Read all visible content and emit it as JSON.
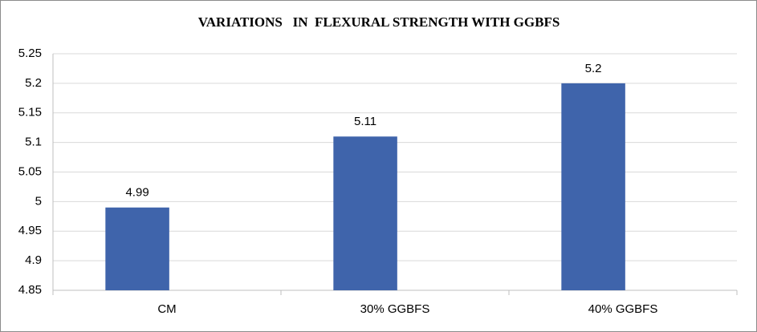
{
  "chart_data": {
    "type": "bar",
    "title": "VARIATIONS   IN  FLEXURAL STRENGTH WITH GGBFS",
    "categories": [
      "CM",
      "30% GGBFS",
      "40% GGBFS"
    ],
    "values": [
      4.99,
      5.11,
      5.2
    ],
    "color": "#3f64ab",
    "ylim": [
      4.85,
      5.25
    ],
    "yticks": [
      4.85,
      4.9,
      4.95,
      5,
      5.05,
      5.1,
      5.15,
      5.2,
      5.25
    ],
    "grid": true
  }
}
